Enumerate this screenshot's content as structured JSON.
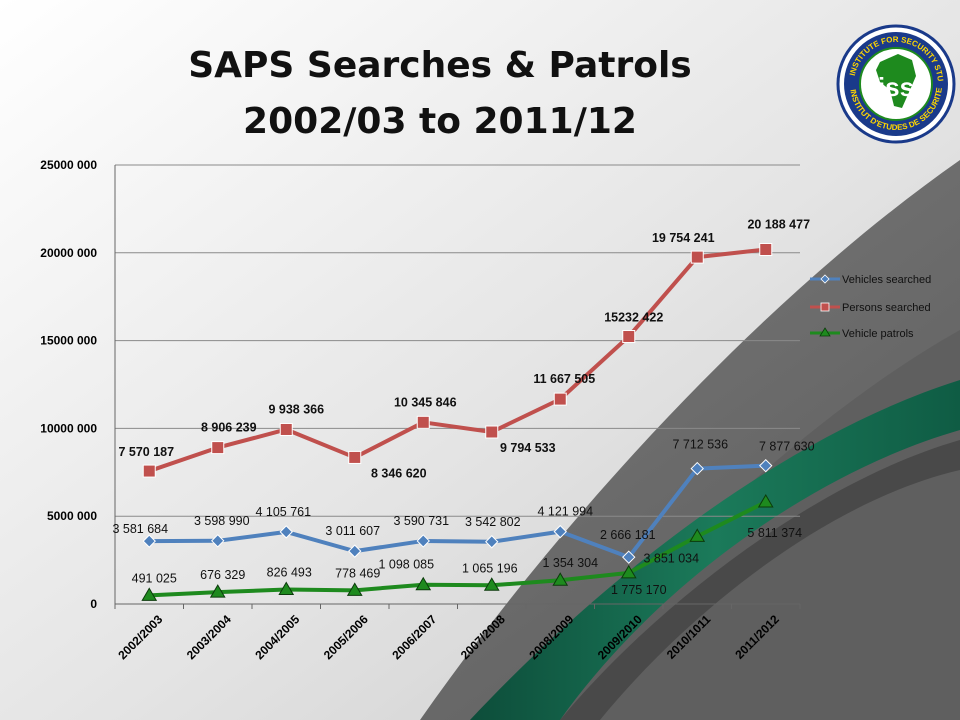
{
  "title_line1": "SAPS Searches & Patrols",
  "title_line2": "2002/03 to 2011/12",
  "logo": {
    "ring_text_top": "INSTITUTE FOR SECURITY STUDIES",
    "ring_text_bottom": "INSTITUT D'ETUDES DE SECURITE",
    "center_text": "iss"
  },
  "colors": {
    "vehicles_searched": "#4f81bd",
    "persons_searched": "#c0504d",
    "vehicle_patrols": "#1e8a1e"
  },
  "chart_data": {
    "type": "line",
    "categories": [
      "2002/2003",
      "2003/2004",
      "2004/2005",
      "2005/2006",
      "2006/2007",
      "2007/2008",
      "2008/2009",
      "2009/2010",
      "2010/1011",
      "2011/2012"
    ],
    "ylim": [
      0,
      25000000
    ],
    "yticks": [
      "0",
      "5000 000",
      "10000 000",
      "15000 000",
      "20000 000",
      "25000 000"
    ],
    "ytick_values": [
      0,
      5000000,
      10000000,
      15000000,
      20000000,
      25000000
    ],
    "grid": true,
    "legend_position": "right",
    "series": [
      {
        "name": "Vehicles searched",
        "marker": "diamond",
        "values": [
          3581684,
          3598990,
          4105761,
          3011607,
          3590731,
          3542802,
          4121994,
          2666181,
          7712536,
          7877630
        ],
        "labels": [
          "3 581 684",
          "3 598 990",
          "4 105 761",
          "3 011 607",
          "3 590 731",
          "3 542 802",
          "4 121 994",
          "2 666 181",
          "7 712 536",
          "7 877 630"
        ]
      },
      {
        "name": "Persons searched",
        "marker": "square",
        "values": [
          7570187,
          8906239,
          9938366,
          8346620,
          10345846,
          9794533,
          11667505,
          15232422,
          19754241,
          20188477
        ],
        "labels": [
          "7 570 187",
          "8 906 239",
          "9 938 366",
          "8 346 620",
          "10 345 846",
          "9 794 533",
          "11 667 505",
          "15232 422",
          "19 754 241",
          "20 188 477"
        ]
      },
      {
        "name": "Vehicle patrols",
        "marker": "triangle",
        "values": [
          491025,
          676329,
          826493,
          778469,
          1098085,
          1065196,
          1354304,
          1775170,
          3851034,
          5811374
        ],
        "labels": [
          "491 025",
          "676 329",
          "826 493",
          "778 469",
          "1 098 085",
          "1 065 196",
          "1 354 304",
          "1 775 170",
          "3 851 034",
          "5 811 374"
        ]
      }
    ]
  }
}
